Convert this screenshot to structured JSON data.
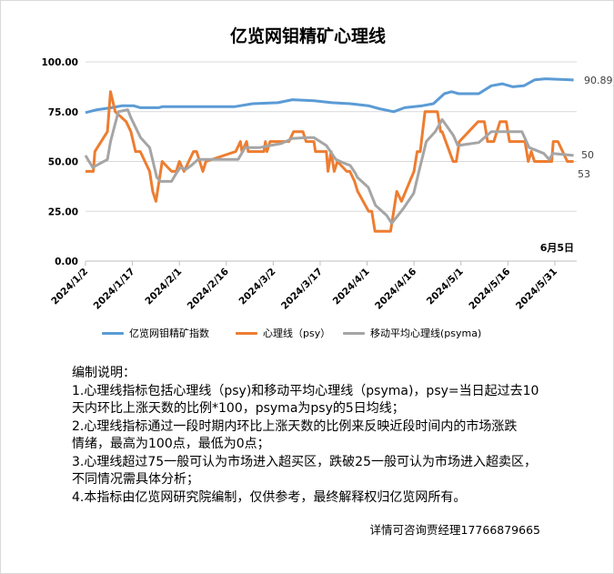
{
  "title": "亿览网钼精矿心理线",
  "chart_data": {
    "type": "line",
    "title": "亿览网钼精矿心理线",
    "x_start_date": "2024/1/2",
    "x_unit": "days since 2024/1/2",
    "xlim": [
      0,
      157
    ],
    "ylim": [
      0,
      100
    ],
    "grid": true,
    "y_ticks": [
      0,
      25,
      50,
      75,
      100
    ],
    "y_tick_labels": [
      "0.00",
      "25.00",
      "50.00",
      "75.00",
      "100.00"
    ],
    "x_ticks": [
      0,
      15,
      30,
      45,
      60,
      75,
      90,
      105,
      120,
      135,
      150
    ],
    "x_tick_labels": [
      "2024/1/2",
      "2024/1/17",
      "2024/2/1",
      "2024/2/16",
      "2024/3/2",
      "2024/3/17",
      "2024/4/1",
      "2024/4/16",
      "2024/5/1",
      "2024/5/16",
      "2024/5/31"
    ],
    "annotation": "6月5日",
    "legend_position": "bottom",
    "series": [
      {
        "name": "亿览网钼精矿指数",
        "color": "#5b9bd5",
        "end_label": "90.89",
        "points": [
          [
            0,
            74.5
          ],
          [
            3.7,
            76
          ],
          [
            8.3,
            77
          ],
          [
            11.8,
            78
          ],
          [
            15.3,
            78
          ],
          [
            17.6,
            77
          ],
          [
            23.4,
            77
          ],
          [
            24.5,
            77.5
          ],
          [
            47.6,
            77.5
          ],
          [
            53.4,
            79
          ],
          [
            61.5,
            79.5
          ],
          [
            66.1,
            81
          ],
          [
            73.1,
            80.5
          ],
          [
            78.8,
            79.5
          ],
          [
            84.6,
            79
          ],
          [
            90.4,
            78
          ],
          [
            93.9,
            76.5
          ],
          [
            98.5,
            75
          ],
          [
            102,
            77
          ],
          [
            107.7,
            78
          ],
          [
            111.2,
            79
          ],
          [
            114.7,
            84
          ],
          [
            117,
            85
          ],
          [
            119.3,
            84
          ],
          [
            125.7,
            84
          ],
          [
            129.7,
            88
          ],
          [
            133.2,
            89
          ],
          [
            136.6,
            87.5
          ],
          [
            140.1,
            88
          ],
          [
            143.6,
            91
          ],
          [
            147,
            91.5
          ],
          [
            155.1,
            91
          ],
          [
            156,
            90.89
          ]
        ]
      },
      {
        "name": "心理线（psy）",
        "color": "#ed7d31",
        "end_label": "50",
        "points": [
          [
            0,
            45
          ],
          [
            2.5,
            45
          ],
          [
            3,
            55
          ],
          [
            7,
            65
          ],
          [
            8,
            85
          ],
          [
            9.5,
            75
          ],
          [
            13,
            70
          ],
          [
            14.5,
            65
          ],
          [
            16,
            55
          ],
          [
            17.5,
            55
          ],
          [
            20.5,
            45
          ],
          [
            21.5,
            35
          ],
          [
            22.5,
            30
          ],
          [
            24.5,
            50
          ],
          [
            27.5,
            45
          ],
          [
            29,
            45
          ],
          [
            30,
            50
          ],
          [
            31.5,
            45
          ],
          [
            33,
            50
          ],
          [
            34.5,
            55
          ],
          [
            35.5,
            55
          ],
          [
            37.5,
            45
          ],
          [
            38.5,
            50
          ],
          [
            48,
            55
          ],
          [
            49.5,
            60
          ],
          [
            50,
            55
          ],
          [
            51.5,
            60
          ],
          [
            52,
            55
          ],
          [
            57,
            55
          ],
          [
            57.5,
            60
          ],
          [
            58,
            55
          ],
          [
            59,
            60
          ],
          [
            65,
            60
          ],
          [
            66.5,
            65
          ],
          [
            69.5,
            65
          ],
          [
            70.5,
            60
          ],
          [
            73,
            60
          ],
          [
            73.5,
            55
          ],
          [
            77,
            55
          ],
          [
            77.5,
            45
          ],
          [
            78.5,
            55
          ],
          [
            79.5,
            45
          ],
          [
            80.5,
            50
          ],
          [
            83.5,
            45
          ],
          [
            84.5,
            45
          ],
          [
            86,
            40
          ],
          [
            87,
            35
          ],
          [
            90.5,
            25
          ],
          [
            91.5,
            25
          ],
          [
            92.5,
            15
          ],
          [
            97.5,
            15
          ],
          [
            99.5,
            35
          ],
          [
            101,
            30
          ],
          [
            105,
            45
          ],
          [
            106,
            55
          ],
          [
            107,
            55
          ],
          [
            108.5,
            75
          ],
          [
            112.5,
            75
          ],
          [
            113.5,
            65
          ],
          [
            114,
            65
          ],
          [
            117.5,
            50
          ],
          [
            118.5,
            50
          ],
          [
            119.5,
            60
          ],
          [
            125.5,
            70
          ],
          [
            127.5,
            70
          ],
          [
            128.5,
            60
          ],
          [
            130.5,
            60
          ],
          [
            132.5,
            70
          ],
          [
            134.5,
            70
          ],
          [
            135.5,
            60
          ],
          [
            140.5,
            60
          ],
          [
            141.5,
            50
          ],
          [
            142.5,
            55
          ],
          [
            143.5,
            50
          ],
          [
            149,
            50
          ],
          [
            149.5,
            60
          ],
          [
            151,
            60
          ],
          [
            154,
            50
          ],
          [
            156,
            50
          ]
        ]
      },
      {
        "name": "移动平均心理线(psyma)",
        "color": "#a5a5a5",
        "end_label": "53",
        "points": [
          [
            0,
            53
          ],
          [
            2.3,
            47
          ],
          [
            7,
            51
          ],
          [
            8,
            60
          ],
          [
            10.5,
            75
          ],
          [
            13.5,
            76
          ],
          [
            14.5,
            72
          ],
          [
            17.6,
            62
          ],
          [
            20.5,
            57
          ],
          [
            22.8,
            42
          ],
          [
            24,
            40
          ],
          [
            27.5,
            40
          ],
          [
            29,
            44
          ],
          [
            30.3,
            47
          ],
          [
            32,
            46
          ],
          [
            33.8,
            48
          ],
          [
            36,
            51
          ],
          [
            48.8,
            51
          ],
          [
            51,
            57
          ],
          [
            55.7,
            57
          ],
          [
            59,
            58
          ],
          [
            62.6,
            59
          ],
          [
            66,
            61.5
          ],
          [
            70.7,
            62
          ],
          [
            73,
            62
          ],
          [
            77,
            58
          ],
          [
            80,
            51
          ],
          [
            82.9,
            49
          ],
          [
            84.6,
            48
          ],
          [
            86.3,
            44
          ],
          [
            86.9,
            42
          ],
          [
            90.4,
            37
          ],
          [
            92.7,
            28
          ],
          [
            96.2,
            23
          ],
          [
            97.9,
            19
          ],
          [
            101.4,
            26
          ],
          [
            104.9,
            34
          ],
          [
            106.6,
            45
          ],
          [
            108.9,
            60
          ],
          [
            111.8,
            65
          ],
          [
            114,
            71
          ],
          [
            117.6,
            63
          ],
          [
            119,
            58
          ],
          [
            125.7,
            59.5
          ],
          [
            129.7,
            65
          ],
          [
            139.5,
            65
          ],
          [
            141.8,
            57
          ],
          [
            146.5,
            54
          ],
          [
            148.2,
            51
          ],
          [
            149.4,
            54
          ],
          [
            156,
            53
          ]
        ]
      }
    ]
  },
  "notes": {
    "heading": "编制说明：",
    "lines": [
      "1.心理线指标包括心理线（psy)和移动平均心理线（psyma)，psy=当日起过去10",
      "天内环比上涨天数的比例*100，psyma为psy的5日均线；",
      "2.心理线指标通过一段时期内环比上涨天数的比例来反映近段时间内的市场涨跌",
      "情绪，最高为100点，最低为0点；",
      "3.心理线超过75一般可认为市场进入超买区，跌破25一般可认为市场进入超卖区，",
      "不同情况需具体分析；",
      "4.本指标由亿览网研究院编制，仅供参考，最终解释权归亿览网所有。"
    ]
  },
  "footer": "详情可咨询贾经理17766879665"
}
